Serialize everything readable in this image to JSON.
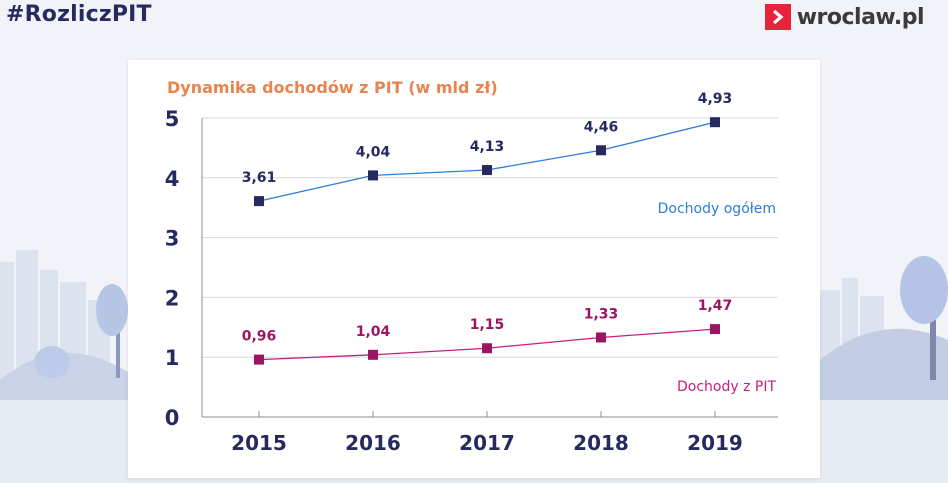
{
  "header": {
    "hashtag": "#RozliczPIT",
    "brand_name": "wroclaw.pl",
    "brand_icon": "chevron-right-icon",
    "brand_color": "#e5243b"
  },
  "chart_data": {
    "type": "line",
    "title": "Dynamika dochodów z PIT (w mld zł)",
    "categories": [
      "2015",
      "2016",
      "2017",
      "2018",
      "2019"
    ],
    "yticks": [
      "0",
      "1",
      "2",
      "3",
      "4",
      "5"
    ],
    "ylim": [
      0,
      5
    ],
    "grid": true,
    "series": [
      {
        "name": "Dochody ogółem",
        "values": [
          3.61,
          4.04,
          4.13,
          4.46,
          4.93
        ],
        "labels": [
          "3,61",
          "4,04",
          "4,13",
          "4,46",
          "4,93"
        ],
        "color": "#2b7fd6",
        "marker_color": "#262a5e"
      },
      {
        "name": "Dochody z PIT",
        "values": [
          0.96,
          1.04,
          1.15,
          1.33,
          1.47
        ],
        "labels": [
          "0,96",
          "1,04",
          "1,15",
          "1,33",
          "1,47"
        ],
        "color": "#c81e7e",
        "marker_color": "#9b1562"
      }
    ]
  }
}
